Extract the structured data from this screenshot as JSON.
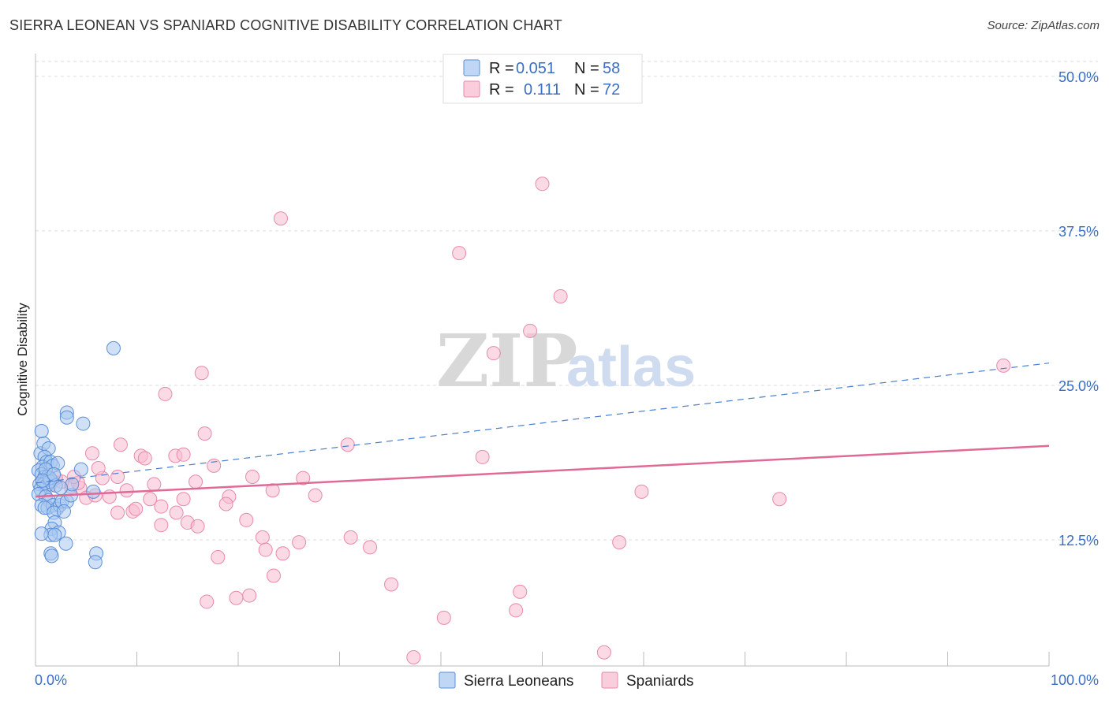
{
  "title": "SIERRA LEONEAN VS SPANIARD COGNITIVE DISABILITY CORRELATION CHART",
  "source": "Source: ZipAtlas.com",
  "watermark": {
    "zip": "ZIP",
    "atlas": "atlas"
  },
  "colors": {
    "blue_fill": "#a9c8f0",
    "blue_stroke": "#5b8fd6",
    "blue_line": "#4a7fd0",
    "pink_fill": "#f7bcd0",
    "pink_stroke": "#e88aaa",
    "pink_line": "#e06a96",
    "grid": "#dddddd",
    "tick_text": "#3a6fc4"
  },
  "legend": {
    "rows": [
      {
        "r_label": "R =",
        "r_value": "0.051",
        "n_label": "N =",
        "n_value": "58"
      },
      {
        "r_label": "R =",
        "r_value": "0.111",
        "n_label": "N =",
        "n_value": "72"
      }
    ]
  },
  "bottom_legend": [
    "Sierra Leoneans",
    "Spaniards"
  ],
  "chart_data": {
    "type": "scatter",
    "title": "SIERRA LEONEAN VS SPANIARD COGNITIVE DISABILITY CORRELATION CHART",
    "xlabel": "",
    "ylabel": "Cognitive Disability",
    "xlim": [
      0,
      100
    ],
    "ylim": [
      2.3,
      51.2
    ],
    "x_tick_labels": [
      "0.0%",
      "100.0%"
    ],
    "y_ticks": [
      12.5,
      25.0,
      37.5,
      50.0
    ],
    "y_tick_labels": [
      "12.5%",
      "25.0%",
      "37.5%",
      "50.0%"
    ],
    "series": [
      {
        "name": "Sierra Leoneans",
        "R": 0.051,
        "N": 58,
        "trend": {
          "x": [
            0,
            100
          ],
          "y": [
            17.1,
            26.8
          ],
          "style": "dashed"
        },
        "points": [
          [
            0.5,
            19.5
          ],
          [
            0.8,
            20.3
          ],
          [
            1.3,
            19.9
          ],
          [
            0.6,
            21.3
          ],
          [
            0.9,
            19.2
          ],
          [
            1.1,
            18.8
          ],
          [
            0.7,
            18.4
          ],
          [
            1.5,
            18.8
          ],
          [
            0.3,
            18.1
          ],
          [
            0.6,
            17.8
          ],
          [
            0.9,
            17.6
          ],
          [
            1.2,
            17.6
          ],
          [
            1.6,
            17.3
          ],
          [
            0.4,
            17.0
          ],
          [
            0.8,
            17.0
          ],
          [
            1.1,
            16.9
          ],
          [
            1.4,
            17.2
          ],
          [
            0.5,
            16.6
          ],
          [
            0.3,
            16.2
          ],
          [
            1.0,
            16.0
          ],
          [
            1.3,
            15.7
          ],
          [
            0.6,
            15.3
          ],
          [
            1.2,
            15.1
          ],
          [
            1.7,
            15.3
          ],
          [
            2.1,
            15.0
          ],
          [
            0.9,
            15.1
          ],
          [
            2.4,
            15.3
          ],
          [
            2.6,
            15.6
          ],
          [
            3.1,
            15.6
          ],
          [
            3.5,
            16.1
          ],
          [
            1.8,
            14.7
          ],
          [
            2.8,
            14.8
          ],
          [
            1.9,
            13.9
          ],
          [
            1.6,
            13.4
          ],
          [
            2.3,
            13.1
          ],
          [
            1.5,
            12.9
          ],
          [
            1.9,
            12.9
          ],
          [
            0.6,
            13.0
          ],
          [
            3.0,
            12.2
          ],
          [
            1.5,
            11.4
          ],
          [
            1.6,
            11.2
          ],
          [
            6.0,
            11.4
          ],
          [
            5.9,
            10.7
          ],
          [
            7.7,
            28.0
          ],
          [
            3.1,
            22.8
          ],
          [
            3.1,
            22.4
          ],
          [
            4.7,
            21.9
          ],
          [
            4.5,
            18.2
          ],
          [
            3.6,
            17.0
          ],
          [
            5.7,
            16.4
          ],
          [
            1.7,
            18.5
          ],
          [
            2.2,
            18.7
          ],
          [
            1.4,
            17.5
          ],
          [
            2.0,
            16.9
          ],
          [
            1.0,
            18.2
          ],
          [
            0.7,
            17.3
          ],
          [
            1.8,
            17.8
          ],
          [
            2.5,
            16.7
          ]
        ]
      },
      {
        "name": "Spaniards",
        "R": 0.111,
        "N": 72,
        "trend": {
          "x": [
            0,
            100
          ],
          "y": [
            16.0,
            20.1
          ],
          "style": "solid"
        },
        "points": [
          [
            50.0,
            41.3
          ],
          [
            24.2,
            38.5
          ],
          [
            41.8,
            35.7
          ],
          [
            51.8,
            32.2
          ],
          [
            48.8,
            29.4
          ],
          [
            45.2,
            27.6
          ],
          [
            95.5,
            26.6
          ],
          [
            16.4,
            26.0
          ],
          [
            12.8,
            24.3
          ],
          [
            16.7,
            21.1
          ],
          [
            8.4,
            20.2
          ],
          [
            30.8,
            20.2
          ],
          [
            5.6,
            19.5
          ],
          [
            10.4,
            19.3
          ],
          [
            13.8,
            19.3
          ],
          [
            14.6,
            19.4
          ],
          [
            44.1,
            19.2
          ],
          [
            17.6,
            18.5
          ],
          [
            10.8,
            19.1
          ],
          [
            6.6,
            17.5
          ],
          [
            8.1,
            17.6
          ],
          [
            21.4,
            17.6
          ],
          [
            26.4,
            17.5
          ],
          [
            15.8,
            17.2
          ],
          [
            3.5,
            16.8
          ],
          [
            4.4,
            16.7
          ],
          [
            9.0,
            16.5
          ],
          [
            23.4,
            16.5
          ],
          [
            59.8,
            16.4
          ],
          [
            73.4,
            15.8
          ],
          [
            5.0,
            15.9
          ],
          [
            5.9,
            16.1
          ],
          [
            11.3,
            15.8
          ],
          [
            14.6,
            15.8
          ],
          [
            19.1,
            16.0
          ],
          [
            18.8,
            15.4
          ],
          [
            12.4,
            15.2
          ],
          [
            8.1,
            14.7
          ],
          [
            9.6,
            14.8
          ],
          [
            9.9,
            15.0
          ],
          [
            13.9,
            14.7
          ],
          [
            20.8,
            14.1
          ],
          [
            15.0,
            13.9
          ],
          [
            16.0,
            13.6
          ],
          [
            12.4,
            13.7
          ],
          [
            22.4,
            12.7
          ],
          [
            26.0,
            12.3
          ],
          [
            31.1,
            12.7
          ],
          [
            33.0,
            11.9
          ],
          [
            57.6,
            12.3
          ],
          [
            22.7,
            11.7
          ],
          [
            24.4,
            11.4
          ],
          [
            18.0,
            11.1
          ],
          [
            23.5,
            9.6
          ],
          [
            35.1,
            8.9
          ],
          [
            47.8,
            8.3
          ],
          [
            21.1,
            8.0
          ],
          [
            19.8,
            7.8
          ],
          [
            16.9,
            7.5
          ],
          [
            47.4,
            6.8
          ],
          [
            40.3,
            6.2
          ],
          [
            37.3,
            3.0
          ],
          [
            56.1,
            3.4
          ],
          [
            2.6,
            17.2
          ],
          [
            1.4,
            16.9
          ],
          [
            4.2,
            17.1
          ],
          [
            7.3,
            16.0
          ],
          [
            3.8,
            17.6
          ],
          [
            11.7,
            17.0
          ],
          [
            6.2,
            18.3
          ],
          [
            27.6,
            16.1
          ],
          [
            2.0,
            17.5
          ]
        ]
      }
    ]
  }
}
